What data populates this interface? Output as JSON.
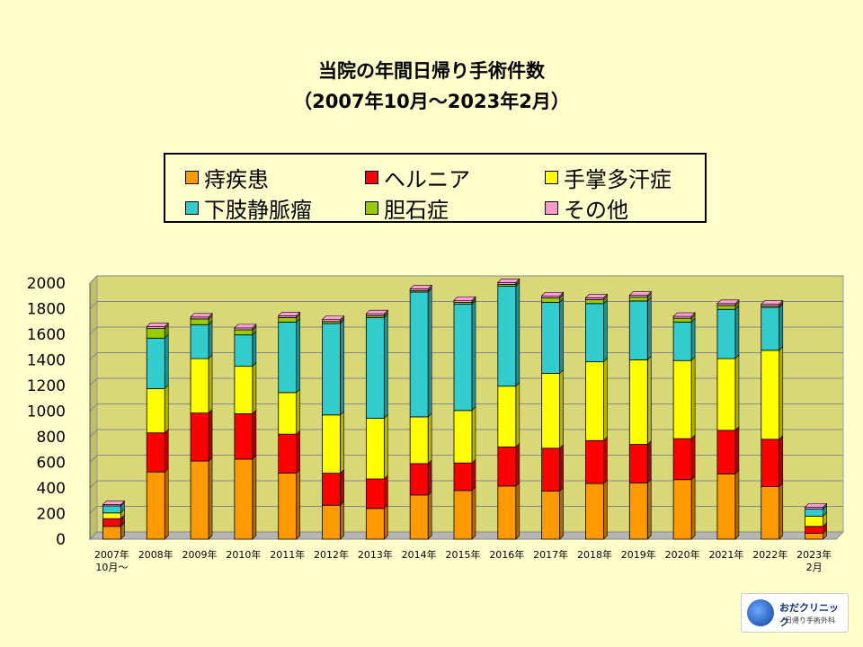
{
  "title": {
    "line1": "当院の年間日帰り手術件数",
    "line2": "（2007年10月～2023年2月）"
  },
  "logo": {
    "name": "おだクリニック",
    "sub": "日帰り手術外科"
  },
  "chart_data": {
    "type": "bar",
    "stacked": true,
    "categories": [
      "2007年\n10月～",
      "2008年",
      "2009年",
      "2010年",
      "2011年",
      "2012年",
      "2013年",
      "2014年",
      "2015年",
      "2016年",
      "2017年",
      "2018年",
      "2019年",
      "2020年",
      "2021年",
      "2022年",
      "2023年\n2月"
    ],
    "ylim": [
      0,
      2000
    ],
    "yticks": [
      0,
      200,
      400,
      600,
      800,
      1000,
      1200,
      1400,
      1600,
      1800,
      2000
    ],
    "grid": true,
    "legend_position": "top",
    "series": [
      {
        "name": "痔疾患",
        "color": "#ff9900",
        "values": [
          100,
          525,
          610,
          625,
          515,
          265,
          240,
          345,
          380,
          415,
          375,
          435,
          440,
          465,
          510,
          410,
          45
        ]
      },
      {
        "name": "ヘルニア",
        "color": "#ff0000",
        "values": [
          60,
          305,
          375,
          355,
          305,
          250,
          230,
          245,
          215,
          305,
          335,
          335,
          300,
          320,
          340,
          370,
          55
        ]
      },
      {
        "name": "手掌多汗症",
        "color": "#ffff00",
        "values": [
          45,
          345,
          425,
          370,
          325,
          455,
          475,
          365,
          410,
          475,
          585,
          615,
          660,
          610,
          560,
          695,
          80
        ]
      },
      {
        "name": "下肢静脈瘤",
        "color": "#33cccc",
        "values": [
          55,
          395,
          265,
          245,
          550,
          715,
          785,
          975,
          830,
          780,
          555,
          455,
          460,
          300,
          385,
          335,
          55
        ]
      },
      {
        "name": "胆石症",
        "color": "#99cc00",
        "values": [
          0,
          75,
          45,
          40,
          35,
          15,
          15,
          10,
          15,
          15,
          35,
          30,
          30,
          30,
          30,
          10,
          0
        ]
      },
      {
        "name": "その他",
        "color": "#ff99cc",
        "values": [
          10,
          15,
          15,
          15,
          15,
          15,
          15,
          15,
          15,
          15,
          15,
          15,
          15,
          15,
          15,
          15,
          15
        ]
      }
    ]
  }
}
